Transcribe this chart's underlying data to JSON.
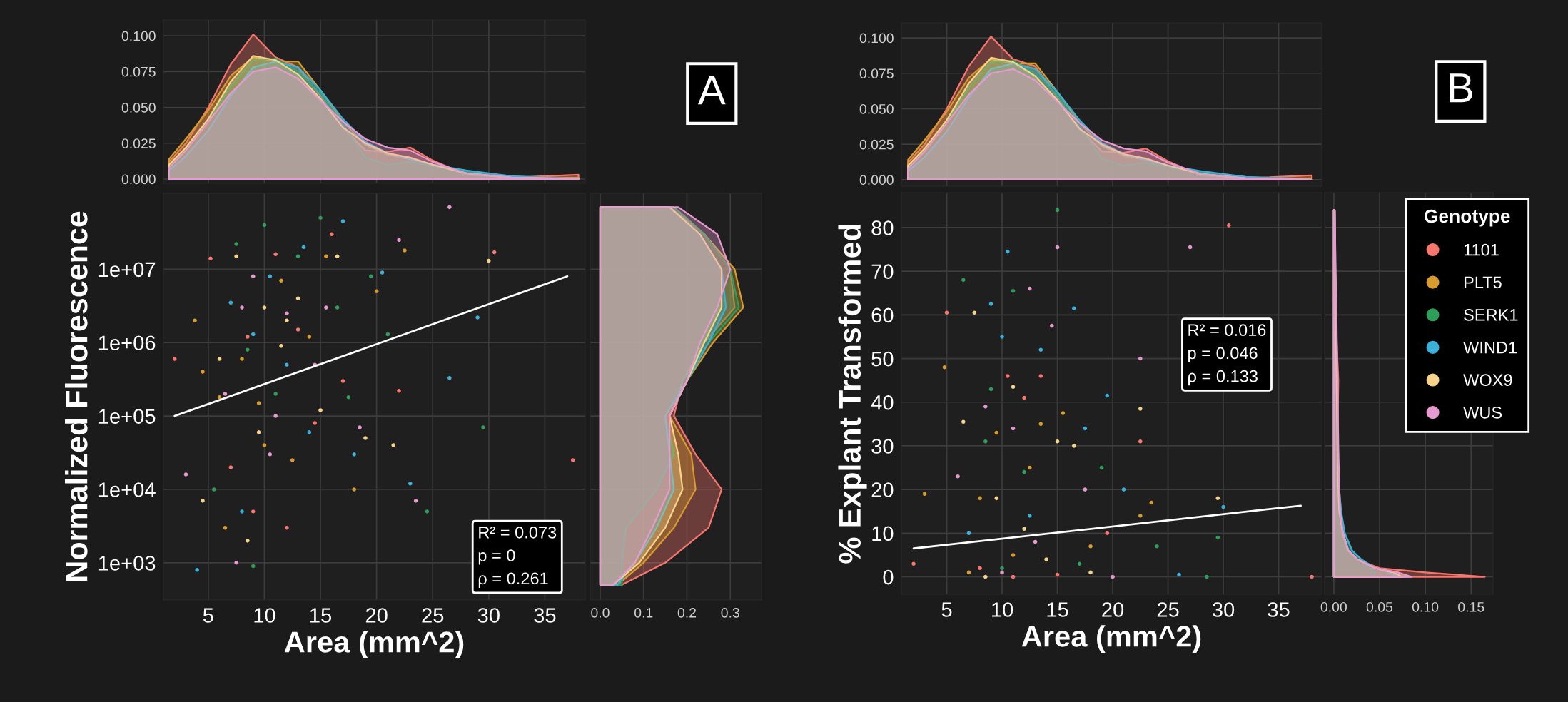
{
  "chart_data": [
    {
      "type": "area",
      "tick_labels": "y",
      "grid": true,
      "xlim": [
        1.0,
        38.6
      ],
      "ylim": [
        -0.003,
        0.111
      ],
      "xticks": [
        {
          "value": 5,
          "label": null
        },
        {
          "value": 10,
          "label": null
        },
        {
          "value": 15,
          "label": null
        },
        {
          "value": 20,
          "label": null
        },
        {
          "value": 25,
          "label": null
        },
        {
          "value": 30,
          "label": null
        },
        {
          "value": 35,
          "label": null
        }
      ],
      "yticks": [
        {
          "value": 0,
          "label": "0.000"
        },
        {
          "value": 0.025,
          "label": "0.025"
        },
        {
          "value": 0.05,
          "label": "0.050"
        },
        {
          "value": 0.075,
          "label": "0.075"
        },
        {
          "value": 0.1,
          "label": "0.100"
        }
      ],
      "x": [
        1.5,
        3,
        5,
        7,
        9,
        11,
        13,
        15,
        17,
        19,
        21,
        23,
        25,
        28,
        32,
        38
      ],
      "annotations": [
        "A"
      ],
      "series": [
        {
          "color": "#f8766d",
          "values": [
            0.012,
            0.025,
            0.05,
            0.08,
            0.101,
            0.085,
            0.078,
            0.058,
            0.036,
            0.02,
            0.019,
            0.022,
            0.013,
            0.003,
            0.001,
            0.003
          ]
        },
        {
          "color": "#d89c2e",
          "values": [
            0.014,
            0.028,
            0.048,
            0.072,
            0.085,
            0.082,
            0.082,
            0.062,
            0.04,
            0.024,
            0.017,
            0.014,
            0.01,
            0.004,
            0.001,
            0.001
          ]
        },
        {
          "color": "#2e9e5b",
          "values": [
            0.008,
            0.02,
            0.04,
            0.065,
            0.083,
            0.084,
            0.075,
            0.06,
            0.038,
            0.015,
            0.01,
            0.012,
            0.009,
            0.005,
            0.002,
            0
          ]
        },
        {
          "color": "#3bb0d9",
          "values": [
            0.006,
            0.016,
            0.034,
            0.058,
            0.078,
            0.082,
            0.078,
            0.062,
            0.042,
            0.026,
            0.018,
            0.014,
            0.01,
            0.006,
            0.002,
            0
          ]
        },
        {
          "color": "#f5d48a",
          "values": [
            0.01,
            0.022,
            0.042,
            0.068,
            0.086,
            0.083,
            0.073,
            0.056,
            0.036,
            0.025,
            0.018,
            0.015,
            0.01,
            0.004,
            0.001,
            0
          ]
        },
        {
          "color": "#e69ad0",
          "values": [
            0.008,
            0.02,
            0.04,
            0.06,
            0.075,
            0.078,
            0.07,
            0.055,
            0.04,
            0.028,
            0.022,
            0.02,
            0.012,
            0.004,
            0.001,
            0
          ]
        }
      ]
    },
    {
      "type": "scatter",
      "marker": "circle",
      "grid": true,
      "log": "y",
      "xlim": [
        1.0,
        38.6
      ],
      "ylim": [
        311,
        108000000
      ],
      "xticks": [
        5,
        10,
        15,
        20,
        25,
        30,
        35
      ],
      "yticks": [
        {
          "value": 1000,
          "label": "1e+03"
        },
        {
          "value": 10000,
          "label": "1e+04"
        },
        {
          "value": 100000,
          "label": "1e+05"
        },
        {
          "value": 1000000,
          "label": "1e+06"
        },
        {
          "value": 10000000,
          "label": "1e+07"
        }
      ],
      "xlabel": "Area (mm^2)",
      "ylabel": "Normalized Fluorescence",
      "annotations": [
        "R² = 0.073\np = 0\nρ = 0.261"
      ],
      "series": [
        {
          "color": "#f8766d",
          "x": [
            2,
            5.2,
            7,
            9,
            11,
            13,
            14.5,
            17,
            22,
            30.5,
            37.5,
            8.5,
            12,
            16
          ],
          "values": [
            600000,
            14000000,
            20000,
            5000,
            16000000,
            1500000,
            80000,
            300000,
            220000,
            17000000,
            25000,
            1200000,
            3000,
            30000000
          ]
        },
        {
          "color": "#d89c2e",
          "x": [
            3.8,
            4.5,
            6,
            8,
            10,
            11.5,
            12.5,
            14,
            15.5,
            18,
            20,
            22.5,
            6.5,
            9.5
          ],
          "values": [
            2000000,
            400000,
            180000,
            600000,
            40000,
            7000000,
            25000,
            1200000,
            15000000,
            10000,
            5000000,
            18000000,
            3000,
            150000
          ]
        },
        {
          "color": "#2e9e5b",
          "x": [
            5.5,
            7.5,
            8.5,
            10,
            11,
            13,
            15,
            17.5,
            19.5,
            21,
            24.5,
            29.5,
            9,
            16.5
          ],
          "values": [
            10000,
            22000000,
            800000,
            40000000,
            200000,
            15000000,
            50000000,
            180000,
            8000000,
            1300000,
            5000,
            70000,
            900,
            3000000
          ]
        },
        {
          "color": "#3bb0d9",
          "x": [
            4,
            7,
            9,
            10.5,
            12,
            14,
            17,
            18,
            20.5,
            23,
            26.5,
            29,
            8,
            13.5
          ],
          "values": [
            800,
            3500000,
            1300000,
            8000000,
            500000,
            60000,
            45000000,
            30000,
            9000000,
            12000,
            330000,
            2200000,
            5000,
            20000000
          ]
        },
        {
          "color": "#f5d48a",
          "x": [
            4.5,
            6,
            7.5,
            8.5,
            10,
            11.5,
            13,
            15,
            16.5,
            19,
            21.5,
            30,
            9.5,
            12
          ],
          "values": [
            7000,
            600000,
            15000000,
            2000,
            3000000,
            900000,
            4000000,
            120000,
            15000000,
            50000,
            40000,
            13000000,
            60000,
            2000000
          ]
        },
        {
          "color": "#e69ad0",
          "x": [
            3,
            6.5,
            7.5,
            9,
            10.5,
            12,
            14.5,
            15.5,
            18.5,
            22,
            23.5,
            26.5,
            11,
            8
          ],
          "values": [
            16000,
            200000,
            1000,
            8000000,
            30000,
            2500000,
            500000,
            3000000,
            70000,
            25000000,
            7000,
            70000000,
            100000,
            3000000
          ]
        },
        {
          "type": "line",
          "marker": "none",
          "color": "#ffffff",
          "x": [
            2,
            37
          ],
          "values": [
            100000,
            8000000
          ]
        }
      ]
    },
    {
      "type": "area",
      "orientation": "horizontal",
      "tick_labels": "x",
      "grid": true,
      "log": "y",
      "xlim": [
        -0.023,
        0.372
      ],
      "ylim": [
        311,
        108000000
      ],
      "xticks": [
        {
          "value": 0,
          "label": "0.0"
        },
        0.1,
        0.2,
        0.3
      ],
      "yticks": [
        {
          "value": 1000,
          "label": null
        },
        {
          "value": 10000,
          "label": null
        },
        {
          "value": 100000,
          "label": null
        },
        {
          "value": 1000000,
          "label": null
        },
        {
          "value": 10000000,
          "label": null
        }
      ],
      "x": [
        500,
        1000,
        3000,
        10000,
        30000,
        100000,
        300000,
        1000000,
        3000000,
        10000000,
        30000000,
        70000000
      ],
      "series": [
        {
          "color": "#f8766d",
          "values": [
            0.05,
            0.15,
            0.25,
            0.28,
            0.22,
            0.17,
            0.19,
            0.24,
            0.31,
            0.3,
            0.24,
            0.17
          ]
        },
        {
          "color": "#d89c2e",
          "values": [
            0.04,
            0.1,
            0.17,
            0.22,
            0.21,
            0.16,
            0.2,
            0.26,
            0.33,
            0.31,
            0.24,
            0.16
          ]
        },
        {
          "color": "#2e9e5b",
          "values": [
            0.05,
            0.05,
            0.06,
            0.13,
            0.17,
            0.15,
            0.19,
            0.25,
            0.32,
            0.3,
            0.24,
            0.17
          ]
        },
        {
          "color": "#3bb0d9",
          "values": [
            0.04,
            0.08,
            0.13,
            0.17,
            0.16,
            0.15,
            0.2,
            0.25,
            0.29,
            0.28,
            0.23,
            0.16
          ]
        },
        {
          "color": "#f5d48a",
          "values": [
            0.03,
            0.09,
            0.15,
            0.19,
            0.18,
            0.16,
            0.2,
            0.24,
            0.28,
            0.28,
            0.23,
            0.16
          ]
        },
        {
          "color": "#e69ad0",
          "values": [
            0.03,
            0.08,
            0.12,
            0.16,
            0.16,
            0.16,
            0.2,
            0.23,
            0.27,
            0.3,
            0.27,
            0.18
          ]
        }
      ]
    },
    {
      "type": "area",
      "tick_labels": "y",
      "grid": true,
      "xlim": [
        0.9,
        38.9
      ],
      "ylim": [
        -0.0046,
        0.1106
      ],
      "xticks": [
        {
          "value": 5,
          "label": null
        },
        {
          "value": 10,
          "label": null
        },
        {
          "value": 15,
          "label": null
        },
        {
          "value": 20,
          "label": null
        },
        {
          "value": 25,
          "label": null
        },
        {
          "value": 30,
          "label": null
        },
        {
          "value": 35,
          "label": null
        }
      ],
      "yticks": [
        {
          "value": 0,
          "label": "0.000"
        },
        {
          "value": 0.025,
          "label": "0.025"
        },
        {
          "value": 0.05,
          "label": "0.050"
        },
        {
          "value": 0.075,
          "label": "0.075"
        },
        {
          "value": 0.1,
          "label": "0.100"
        }
      ],
      "x": [
        1.5,
        3,
        5,
        7,
        9,
        11,
        13,
        15,
        17,
        19,
        21,
        23,
        25,
        28,
        32,
        38
      ],
      "annotations": [
        "B"
      ],
      "series": [
        {
          "color": "#f8766d",
          "values": [
            0.012,
            0.025,
            0.05,
            0.08,
            0.101,
            0.085,
            0.08,
            0.058,
            0.036,
            0.02,
            0.019,
            0.022,
            0.013,
            0.003,
            0.001,
            0.003
          ]
        },
        {
          "color": "#d89c2e",
          "values": [
            0.014,
            0.028,
            0.048,
            0.072,
            0.085,
            0.082,
            0.082,
            0.062,
            0.04,
            0.024,
            0.017,
            0.014,
            0.01,
            0.004,
            0.001,
            0.001
          ]
        },
        {
          "color": "#2e9e5b",
          "values": [
            0.008,
            0.02,
            0.04,
            0.065,
            0.083,
            0.084,
            0.075,
            0.06,
            0.038,
            0.015,
            0.01,
            0.012,
            0.009,
            0.005,
            0.002,
            0
          ]
        },
        {
          "color": "#3bb0d9",
          "values": [
            0.006,
            0.016,
            0.034,
            0.058,
            0.078,
            0.082,
            0.078,
            0.062,
            0.042,
            0.026,
            0.018,
            0.014,
            0.01,
            0.006,
            0.002,
            0
          ]
        },
        {
          "color": "#f5d48a",
          "values": [
            0.01,
            0.022,
            0.042,
            0.068,
            0.086,
            0.083,
            0.073,
            0.056,
            0.036,
            0.025,
            0.018,
            0.015,
            0.01,
            0.004,
            0.001,
            0
          ]
        },
        {
          "color": "#e69ad0",
          "values": [
            0.008,
            0.02,
            0.04,
            0.06,
            0.075,
            0.078,
            0.07,
            0.055,
            0.04,
            0.028,
            0.022,
            0.02,
            0.012,
            0.004,
            0.001,
            0
          ]
        }
      ]
    },
    {
      "type": "scatter",
      "marker": "circle",
      "grid": true,
      "legend": "right",
      "legend_title": "Genotype",
      "xlim": [
        0.9,
        38.9
      ],
      "ylim": [
        -4,
        88
      ],
      "xticks": [
        5,
        10,
        15,
        20,
        25,
        30,
        35
      ],
      "yticks": [
        0,
        10,
        20,
        30,
        40,
        50,
        60,
        70,
        80
      ],
      "xlabel": "Area (mm^2)",
      "ylabel": "% Explant Transformed",
      "annotations": [
        "R² = 0.016\np = 0.046\nρ = 0.133"
      ],
      "series": [
        {
          "name": "1101",
          "color": "#f8766d",
          "x": [
            2,
            5,
            10.5,
            12,
            13.5,
            22.5,
            30.5,
            38,
            15,
            19.5,
            8,
            11
          ],
          "values": [
            3,
            60.5,
            46,
            41,
            46,
            31,
            80.5,
            0,
            0.5,
            10,
            2,
            0
          ]
        },
        {
          "name": "PLT5",
          "color": "#d89c2e",
          "x": [
            3,
            4.8,
            8,
            9.5,
            12.5,
            13.5,
            15.5,
            18,
            22.5,
            23.5,
            7,
            11
          ],
          "values": [
            19,
            48,
            18,
            33,
            25,
            35,
            37.5,
            7,
            14,
            17,
            1,
            5
          ]
        },
        {
          "name": "SERK1",
          "color": "#2e9e5b",
          "x": [
            6.5,
            9,
            11,
            12,
            15,
            19,
            24,
            28.5,
            29.5,
            8.5,
            10,
            17
          ],
          "values": [
            68,
            43,
            65.5,
            24,
            84,
            25,
            7,
            0,
            9,
            31,
            2,
            3
          ]
        },
        {
          "name": "WIND1",
          "color": "#3bb0d9",
          "x": [
            9,
            10,
            10.5,
            13.5,
            16.5,
            19.5,
            21,
            26,
            30,
            7,
            12.5,
            17.5
          ],
          "values": [
            62.5,
            55,
            74.5,
            52,
            61.5,
            41.5,
            20,
            0.5,
            16,
            10,
            14,
            34
          ]
        },
        {
          "name": "WOX9",
          "color": "#f5d48a",
          "x": [
            6.5,
            7.5,
            9.5,
            11,
            15,
            16.5,
            22.5,
            29.5,
            8.5,
            12,
            14,
            18
          ],
          "values": [
            35.5,
            60.5,
            18,
            43.5,
            31,
            30,
            38.5,
            18,
            0,
            11,
            4,
            1
          ]
        },
        {
          "name": "WUS",
          "color": "#e69ad0",
          "x": [
            6,
            8.5,
            11,
            12.5,
            14.5,
            15,
            22.5,
            27,
            10,
            13,
            17.5,
            20
          ],
          "values": [
            23,
            39,
            34,
            66,
            57.5,
            75.5,
            50,
            75.5,
            1,
            8,
            20,
            0
          ]
        },
        {
          "type": "line",
          "marker": "none",
          "color": "#ffffff",
          "x": [
            2,
            37
          ],
          "values": [
            6.5,
            16.3
          ]
        }
      ]
    },
    {
      "type": "area",
      "orientation": "horizontal",
      "tick_labels": "x",
      "grid": true,
      "xlim": [
        -0.01,
        0.174
      ],
      "ylim": [
        -4,
        88
      ],
      "xticks": [
        {
          "value": 0,
          "label": "0.00"
        },
        {
          "value": 0.05,
          "label": "0.05"
        },
        {
          "value": 0.1,
          "label": "0.10"
        },
        {
          "value": 0.15,
          "label": "0.15"
        }
      ],
      "yticks": [
        {
          "value": 0,
          "label": null
        },
        {
          "value": 10,
          "label": null
        },
        {
          "value": 20,
          "label": null
        },
        {
          "value": 30,
          "label": null
        },
        {
          "value": 40,
          "label": null
        },
        {
          "value": 50,
          "label": null
        },
        {
          "value": 60,
          "label": null
        },
        {
          "value": 70,
          "label": null
        },
        {
          "value": 80,
          "label": null
        }
      ],
      "x": [
        0,
        1,
        2,
        4,
        6,
        10,
        15,
        20,
        30,
        45,
        60,
        84
      ],
      "series": [
        {
          "color": "#f8766d",
          "values": [
            0.165,
            0.1,
            0.05,
            0.025,
            0.015,
            0.009,
            0.006,
            0.005,
            0.004,
            0.005,
            0.002,
            0.001
          ]
        },
        {
          "color": "#d89c2e",
          "values": [
            0.08,
            0.07,
            0.045,
            0.025,
            0.016,
            0.01,
            0.007,
            0.005,
            0.004,
            0.004,
            0.002,
            0.001
          ]
        },
        {
          "color": "#2e9e5b",
          "values": [
            0.045,
            0.045,
            0.04,
            0.03,
            0.02,
            0.012,
            0.008,
            0.006,
            0.004,
            0.003,
            0.002,
            0.001
          ]
        },
        {
          "color": "#3bb0d9",
          "values": [
            0.07,
            0.06,
            0.045,
            0.03,
            0.02,
            0.012,
            0.008,
            0.006,
            0.004,
            0.003,
            0.002,
            0.001
          ]
        },
        {
          "color": "#f5d48a",
          "values": [
            0.075,
            0.065,
            0.045,
            0.026,
            0.016,
            0.01,
            0.006,
            0.005,
            0.004,
            0.003,
            0.002,
            0.001
          ]
        },
        {
          "color": "#e69ad0",
          "values": [
            0.085,
            0.07,
            0.045,
            0.026,
            0.016,
            0.01,
            0.007,
            0.006,
            0.005,
            0.004,
            0.003,
            0.001
          ]
        }
      ]
    }
  ]
}
